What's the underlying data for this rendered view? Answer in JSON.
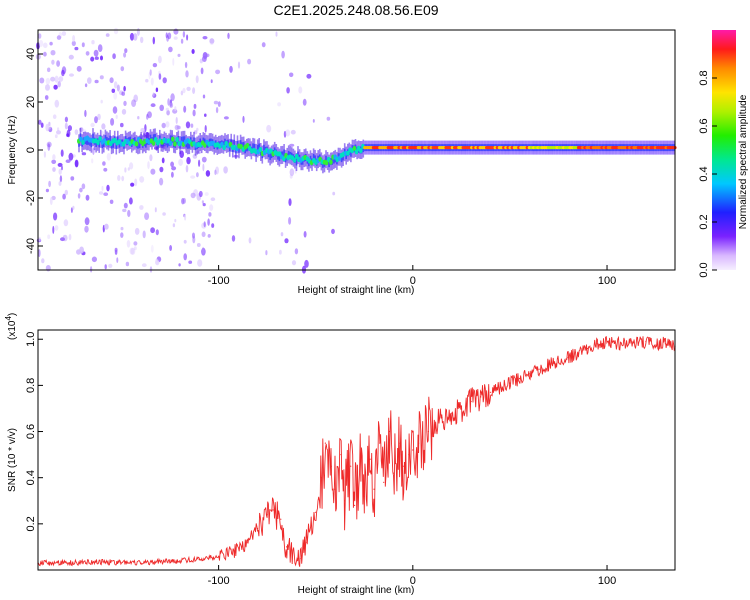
{
  "title": "C2E1.2025.248.08.56.E09",
  "colors": {
    "frame": "#000000",
    "snr_line": "#ee2a2a",
    "ridge_red": "#ff2a10",
    "scatter": "#7a3cff"
  },
  "chart_data": [
    {
      "type": "heatmap",
      "xlabel": "Height of straight line (km)",
      "ylabel": "Frequency (Hz)",
      "xlim": [
        -193,
        135
      ],
      "ylim": [
        -50,
        50
      ],
      "xticks": [
        -100,
        0,
        100
      ],
      "xtick_labels": [
        "-100",
        "0",
        "100"
      ],
      "yticks": [
        -40,
        -20,
        0,
        20,
        40
      ],
      "ytick_labels": [
        "-40",
        "-20",
        "0",
        "20",
        "40"
      ],
      "ridge": {
        "x": [
          -165,
          -150,
          -130,
          -115,
          -100,
          -85,
          -75,
          -65,
          -55,
          -45,
          -38,
          -30,
          -25,
          -20,
          -10,
          0,
          10,
          30,
          60,
          90,
          135
        ],
        "y": [
          4,
          3,
          4,
          3,
          2,
          1,
          -1,
          -3,
          -4,
          -5,
          -3,
          0,
          1,
          1,
          1,
          1,
          1,
          1,
          1,
          1,
          1
        ]
      },
      "colorbar": {
        "label": "Normalized spectral amplitude",
        "range": [
          0,
          1
        ],
        "ticks": [
          0.0,
          0.2,
          0.4,
          0.6,
          0.8
        ],
        "tick_labels": [
          "0.0",
          "0.2",
          "0.4",
          "0.6",
          "0.8"
        ]
      }
    },
    {
      "type": "line",
      "xlabel": "Height of straight line (km)",
      "ylabel": "SNR (10 * v/v)",
      "exponent_label": "(x10",
      "exponent_power": "4",
      "exponent_close": ")",
      "xlim": [
        -193,
        135
      ],
      "ylim": [
        0,
        1.04
      ],
      "xticks": [
        -100,
        0,
        100
      ],
      "xtick_labels": [
        "-100",
        "0",
        "100"
      ],
      "yticks": [
        0.2,
        0.4,
        0.6,
        0.8,
        1.0
      ],
      "ytick_labels": [
        "0.2",
        "0.4",
        "0.6",
        "0.8",
        "1.0"
      ],
      "series": [
        {
          "name": "SNR",
          "x": [
            -193,
            -180,
            -160,
            -140,
            -120,
            -110,
            -100,
            -92,
            -85,
            -80,
            -75,
            -72,
            -68,
            -65,
            -62,
            -58,
            -55,
            -50,
            -47,
            -45,
            -42,
            -40,
            -37,
            -35,
            -32,
            -30,
            -27,
            -25,
            -22,
            -20,
            -17,
            -15,
            -12,
            -10,
            -7,
            -5,
            -2,
            0,
            3,
            5,
            8,
            10,
            15,
            20,
            25,
            30,
            35,
            40,
            45,
            50,
            55,
            60,
            65,
            70,
            75,
            80,
            85,
            90,
            95,
            100,
            110,
            120,
            130,
            135
          ],
          "y": [
            0.03,
            0.03,
            0.035,
            0.03,
            0.04,
            0.045,
            0.06,
            0.08,
            0.12,
            0.18,
            0.24,
            0.26,
            0.22,
            0.1,
            0.06,
            0.05,
            0.12,
            0.25,
            0.4,
            0.55,
            0.45,
            0.35,
            0.5,
            0.3,
            0.45,
            0.28,
            0.5,
            0.32,
            0.48,
            0.35,
            0.55,
            0.38,
            0.6,
            0.42,
            0.55,
            0.45,
            0.5,
            0.52,
            0.55,
            0.58,
            0.6,
            0.62,
            0.66,
            0.68,
            0.7,
            0.73,
            0.75,
            0.77,
            0.79,
            0.81,
            0.83,
            0.85,
            0.87,
            0.89,
            0.9,
            0.92,
            0.94,
            0.96,
            0.98,
            0.99,
            0.98,
            0.99,
            0.98,
            0.97
          ]
        }
      ]
    }
  ]
}
